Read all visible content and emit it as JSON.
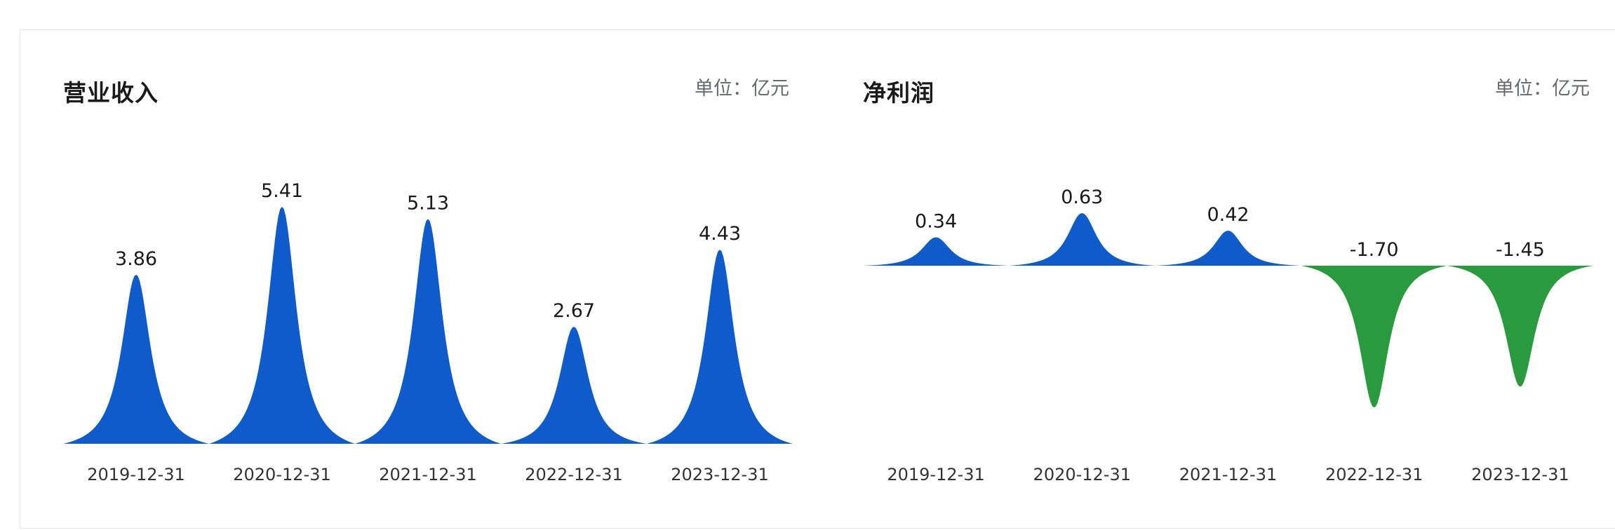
{
  "colors": {
    "positive": "#0f5bcb",
    "negative": "#2a9a3e"
  },
  "chart_data": [
    {
      "type": "area",
      "title": "营业收入",
      "unit_label": "单位：亿元",
      "categories": [
        "2019-12-31",
        "2020-12-31",
        "2021-12-31",
        "2022-12-31",
        "2023-12-31"
      ],
      "values": [
        3.86,
        5.41,
        5.13,
        2.67,
        4.43
      ],
      "value_labels": [
        "3.86",
        "5.41",
        "5.13",
        "2.67",
        "4.43"
      ],
      "grid": false,
      "legend": "none"
    },
    {
      "type": "area",
      "title": "净利润",
      "unit_label": "单位：亿元",
      "categories": [
        "2019-12-31",
        "2020-12-31",
        "2021-12-31",
        "2022-12-31",
        "2023-12-31"
      ],
      "values": [
        0.34,
        0.63,
        0.42,
        -1.7,
        -1.45
      ],
      "value_labels": [
        "0.34",
        "0.63",
        "0.42",
        "-1.70",
        "-1.45"
      ],
      "grid": false,
      "legend": "none"
    }
  ]
}
